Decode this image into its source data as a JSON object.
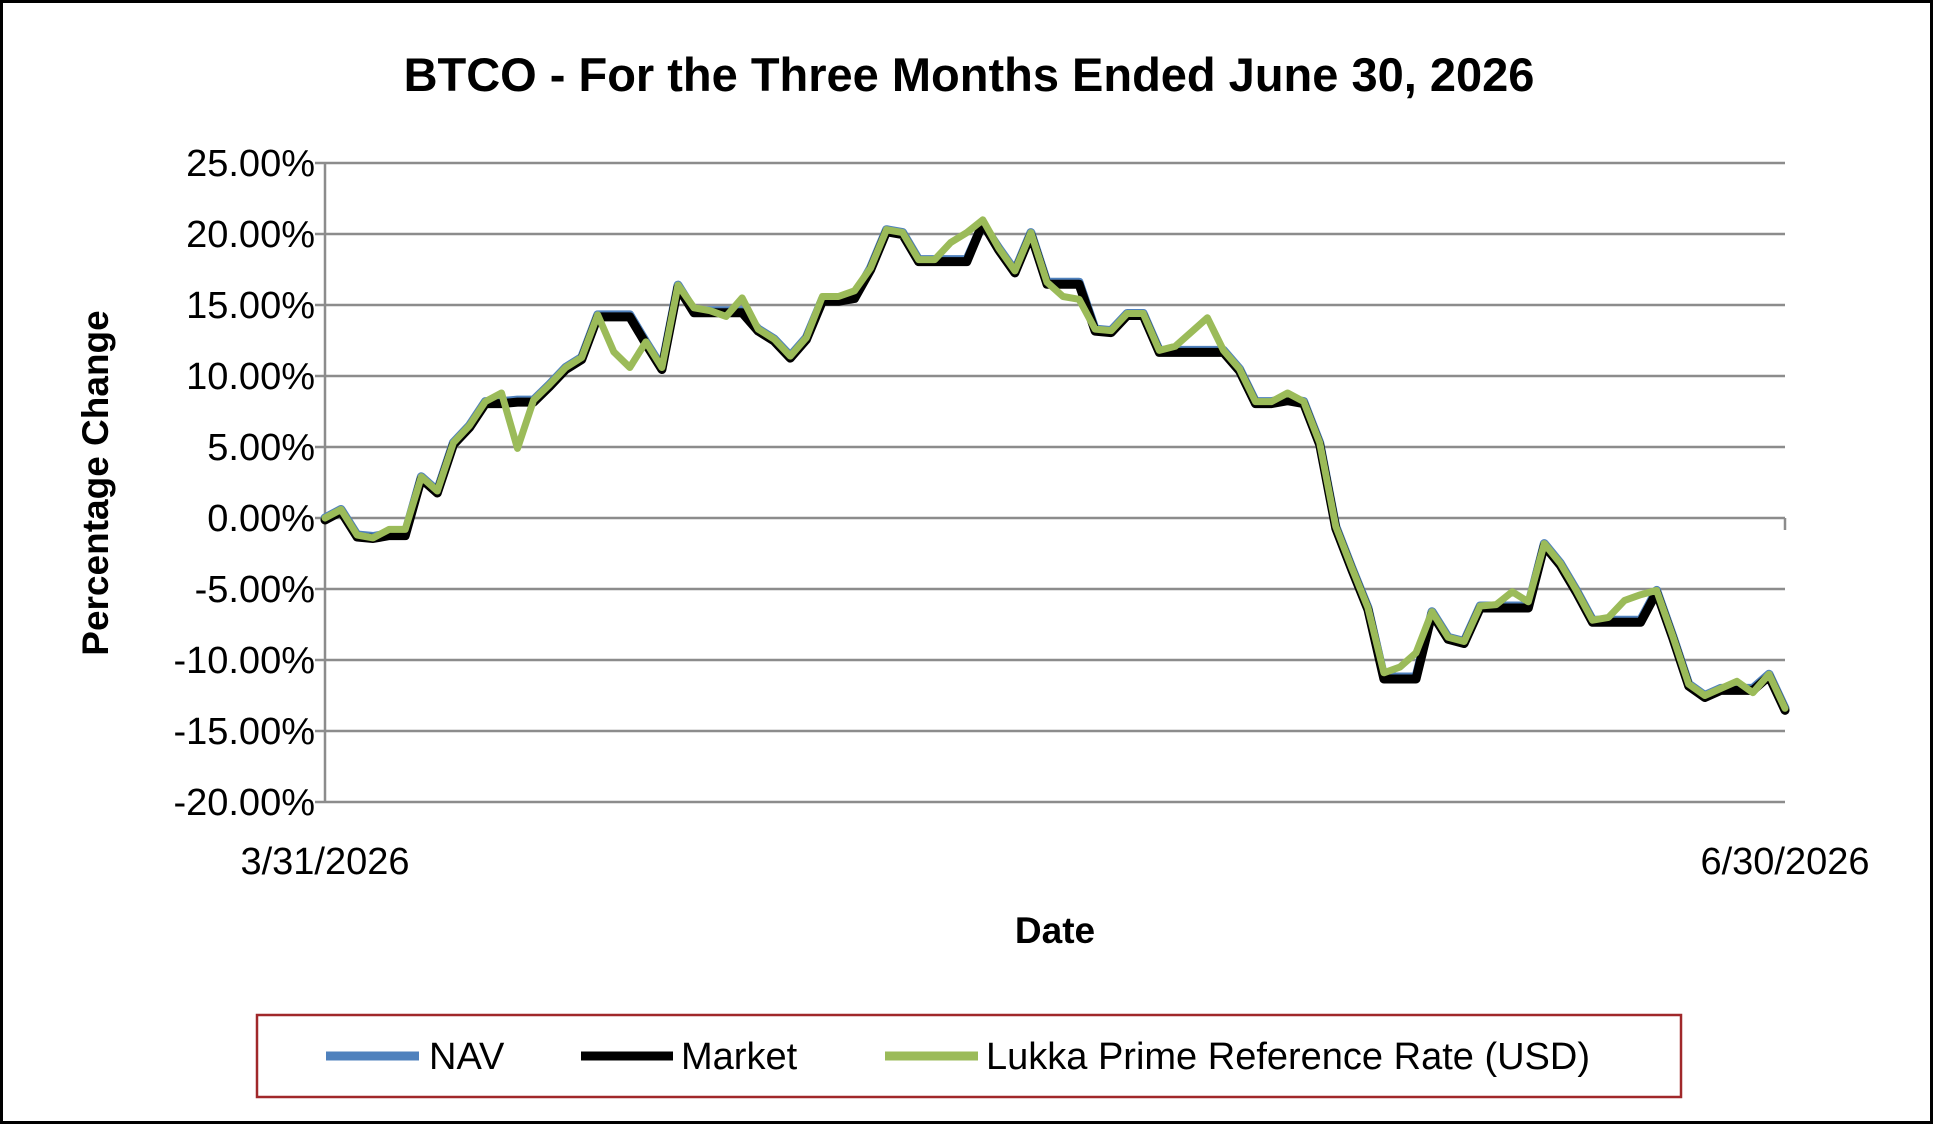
{
  "chart_data": {
    "type": "line",
    "title": "BTCO - For the Three Months Ended June 30, 2026",
    "xlabel": "Date",
    "ylabel": "Percentage Change",
    "x_tick_labels": [
      "3/31/2026",
      "6/30/2026"
    ],
    "x_range": [
      "3/31/2026",
      "6/30/2026"
    ],
    "ylim": [
      -20,
      25
    ],
    "y_tick_values": [
      25,
      20,
      15,
      10,
      5,
      0,
      -5,
      -10,
      -15,
      -20
    ],
    "y_tick_labels": [
      "25.00%",
      "20.00%",
      "15.00%",
      "10.00%",
      "5.00%",
      "0.00%",
      "-5.00%",
      "-10.00%",
      "-15.00%",
      "-20.00%"
    ],
    "y_unit": "%",
    "grid": true,
    "legend_position": "bottom",
    "series": [
      {
        "name": "NAV",
        "color": "#4F81BD",
        "values": [
          0.0,
          0.6,
          -1.2,
          -1.3,
          -1.1,
          -1.1,
          2.9,
          1.9,
          5.3,
          6.5,
          8.2,
          8.2,
          8.3,
          8.3,
          9.4,
          10.6,
          11.3,
          14.3,
          14.3,
          14.3,
          12.4,
          10.6,
          16.4,
          14.6,
          14.6,
          14.6,
          14.6,
          13.3,
          12.6,
          11.4,
          12.7,
          15.4,
          15.4,
          15.6,
          17.6,
          20.3,
          20.1,
          18.2,
          18.2,
          18.2,
          18.2,
          20.7,
          19.0,
          17.4,
          20.1,
          16.6,
          16.6,
          16.6,
          13.3,
          13.2,
          14.4,
          14.4,
          11.8,
          11.8,
          11.8,
          11.8,
          11.8,
          10.5,
          8.2,
          8.2,
          8.4,
          8.2,
          5.3,
          -0.6,
          -3.5,
          -6.3,
          -11.2,
          -11.2,
          -11.2,
          -6.6,
          -8.4,
          -8.7,
          -6.2,
          -6.2,
          -6.2,
          -6.2,
          -1.8,
          -3.2,
          -5.1,
          -7.2,
          -7.2,
          -7.2,
          -7.2,
          -5.1,
          -8.3,
          -11.7,
          -12.5,
          -12.0,
          -12.0,
          -12.0,
          -11.0,
          -13.4
        ]
      },
      {
        "name": "Market",
        "color": "#000000",
        "values": [
          0.0,
          0.6,
          -1.2,
          -1.3,
          -1.1,
          -1.1,
          2.9,
          1.9,
          5.3,
          6.5,
          8.2,
          8.2,
          8.3,
          8.3,
          9.4,
          10.6,
          11.3,
          14.3,
          14.3,
          14.3,
          12.4,
          10.6,
          16.4,
          14.6,
          14.6,
          14.6,
          14.6,
          13.3,
          12.6,
          11.4,
          12.7,
          15.4,
          15.4,
          15.6,
          17.6,
          20.3,
          20.1,
          18.2,
          18.2,
          18.2,
          18.2,
          20.9,
          19.0,
          17.4,
          20.1,
          16.6,
          16.6,
          16.6,
          13.3,
          13.2,
          14.4,
          14.4,
          11.8,
          11.8,
          11.8,
          11.8,
          11.8,
          10.5,
          8.2,
          8.2,
          8.4,
          8.2,
          5.3,
          -0.6,
          -3.5,
          -6.3,
          -11.2,
          -11.2,
          -11.2,
          -6.6,
          -8.4,
          -8.7,
          -6.2,
          -6.2,
          -6.2,
          -6.2,
          -1.8,
          -3.2,
          -5.1,
          -7.2,
          -7.2,
          -7.2,
          -7.2,
          -5.1,
          -8.3,
          -11.7,
          -12.5,
          -12.0,
          -12.0,
          -12.0,
          -11.0,
          -13.4
        ]
      },
      {
        "name": "Lukka Prime Reference Rate (USD)",
        "color": "#9BBB59",
        "values": [
          0.0,
          0.6,
          -1.2,
          -1.4,
          -0.8,
          -0.8,
          2.9,
          1.9,
          5.3,
          6.5,
          8.2,
          8.8,
          4.9,
          8.3,
          9.4,
          10.6,
          11.3,
          14.3,
          11.7,
          10.6,
          12.4,
          10.6,
          16.4,
          14.8,
          14.6,
          14.2,
          15.5,
          13.3,
          12.6,
          11.4,
          12.7,
          15.6,
          15.6,
          16.0,
          17.6,
          20.3,
          20.1,
          18.2,
          18.2,
          19.4,
          20.1,
          21.0,
          19.0,
          17.4,
          20.1,
          16.6,
          15.6,
          15.4,
          13.3,
          13.2,
          14.4,
          14.4,
          11.8,
          12.1,
          13.1,
          14.1,
          11.8,
          10.5,
          8.2,
          8.2,
          8.8,
          8.2,
          5.3,
          -0.6,
          -3.5,
          -6.3,
          -10.9,
          -10.5,
          -9.5,
          -6.6,
          -8.4,
          -8.7,
          -6.2,
          -6.1,
          -5.2,
          -5.9,
          -1.8,
          -3.2,
          -5.1,
          -7.2,
          -7.0,
          -5.8,
          -5.4,
          -5.1,
          -8.3,
          -11.7,
          -12.5,
          -12.0,
          -11.5,
          -12.3,
          -11.0,
          -13.4
        ]
      }
    ]
  }
}
